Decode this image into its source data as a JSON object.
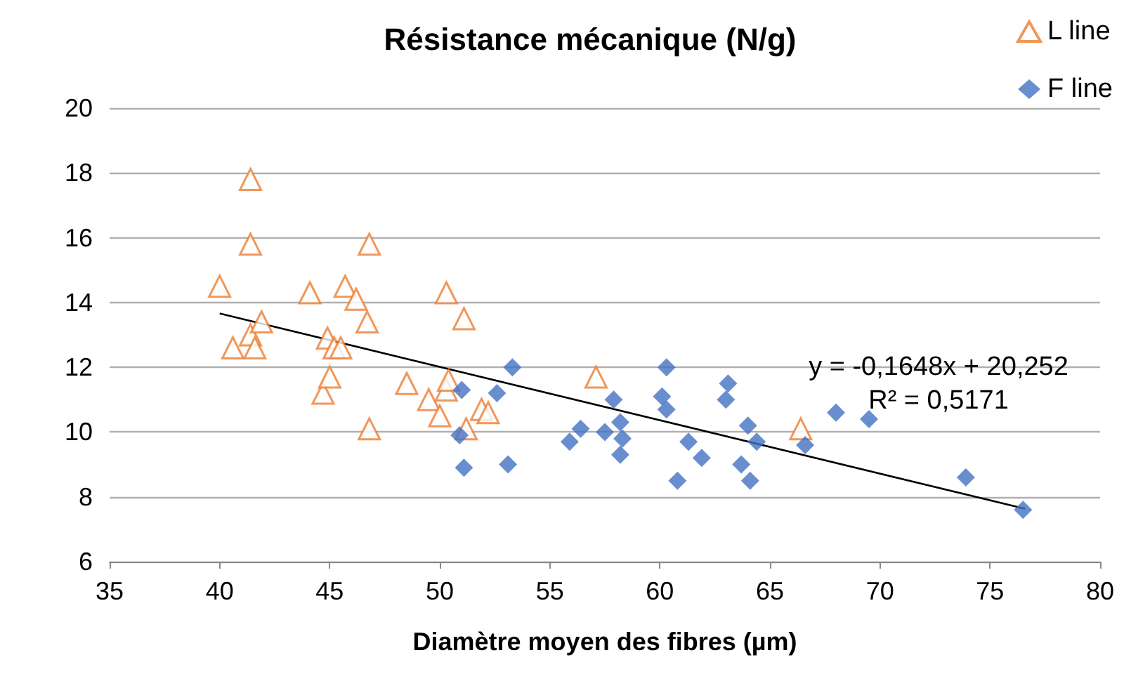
{
  "chart_data": {
    "type": "scatter",
    "title": "Résistance mécanique (N/g)",
    "xlabel": "Diamètre moyen des fibres (µm)",
    "xlim": [
      35,
      80
    ],
    "xticks": [
      35,
      40,
      45,
      50,
      55,
      60,
      65,
      70,
      75,
      80
    ],
    "ylim": [
      6,
      20
    ],
    "yticks": [
      6,
      8,
      10,
      12,
      14,
      16,
      18,
      20
    ],
    "grid": "y",
    "legend": "top right",
    "annotations": [
      "y = -0,1648x + 20,252",
      "R² = 0,5171"
    ],
    "series": [
      {
        "name": "L line",
        "color": "#ed7d31",
        "marker": "triangle",
        "x": [
          40.0,
          40.6,
          41.4,
          41.4,
          41.4,
          41.6,
          41.9,
          44.1,
          44.7,
          45.0,
          44.9,
          45.2,
          45.5,
          45.7,
          46.2,
          46.7,
          46.8,
          46.8,
          48.5,
          49.5,
          50.0,
          50.3,
          50.3,
          50.4,
          51.1,
          51.2,
          51.9,
          52.2,
          57.1,
          66.4
        ],
        "values": [
          14.5,
          12.6,
          17.8,
          15.8,
          13.0,
          12.6,
          13.4,
          14.3,
          11.2,
          11.7,
          12.9,
          12.6,
          12.6,
          14.5,
          14.1,
          13.4,
          15.8,
          10.1,
          11.5,
          11.0,
          10.5,
          14.3,
          11.3,
          11.6,
          13.5,
          10.1,
          10.7,
          10.6,
          11.7,
          10.1
        ]
      },
      {
        "name": "F line",
        "color": "#4472c4",
        "marker": "diamond",
        "x": [
          53.3,
          51.0,
          52.6,
          50.9,
          51.1,
          53.1,
          55.9,
          56.4,
          57.5,
          57.9,
          58.2,
          58.3,
          58.2,
          60.3,
          60.1,
          60.3,
          61.3,
          61.9,
          60.8,
          63.1,
          63.0,
          64.0,
          64.4,
          63.7,
          64.1,
          66.6,
          68.0,
          69.5,
          73.9,
          76.5
        ],
        "values": [
          12.0,
          11.3,
          11.2,
          9.9,
          8.9,
          9.0,
          9.7,
          10.1,
          10.0,
          11.0,
          10.3,
          9.8,
          9.3,
          12.0,
          11.1,
          10.7,
          9.7,
          9.2,
          8.5,
          11.5,
          11.0,
          10.2,
          9.7,
          9.0,
          8.5,
          9.6,
          10.6,
          10.4,
          8.6,
          7.6
        ]
      },
      {
        "type": "line",
        "color": "#000000",
        "marker": "none",
        "x": [
          40.0,
          76.6
        ],
        "values": [
          13.66,
          7.63
        ]
      }
    ]
  }
}
